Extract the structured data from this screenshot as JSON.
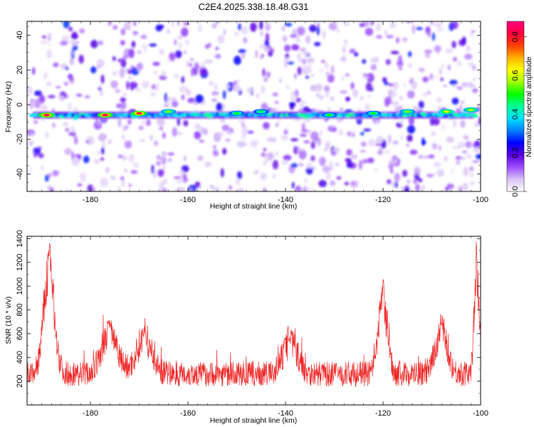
{
  "title": "C2E4.2025.338.18.48.G31",
  "chart_data": [
    {
      "type": "heatmap",
      "title": "C2E4.2025.338.18.48.G31",
      "xlabel": "Height of straight line (km)",
      "ylabel": "Frequency (Hz)",
      "xlim": [
        -193,
        -100
      ],
      "ylim": [
        -50,
        48
      ],
      "xticks": [
        -180,
        -160,
        -140,
        -120,
        -100
      ],
      "yticks": [
        -40,
        -20,
        0,
        20,
        40
      ],
      "signal_band": {
        "frequency_hz": -6,
        "x_from": -192,
        "x_to": -101
      },
      "noise_columns_km": [
        -190,
        -184,
        -178,
        -172,
        -166,
        -161,
        -158,
        -153,
        -149,
        -144,
        -139,
        -136,
        -132,
        -127,
        -123,
        -118,
        -114,
        -110,
        -106,
        -102
      ],
      "hot_spots": [
        {
          "x": -189,
          "f": -6,
          "amp": 0.85
        },
        {
          "x": -177,
          "f": -6,
          "amp": 0.85
        },
        {
          "x": -170,
          "f": -5,
          "amp": 0.82
        },
        {
          "x": -164,
          "f": -4,
          "amp": 0.55
        },
        {
          "x": -150,
          "f": -5,
          "amp": 0.5
        },
        {
          "x": -145,
          "f": -4,
          "amp": 0.48
        },
        {
          "x": -131,
          "f": -6,
          "amp": 0.5
        },
        {
          "x": -122,
          "f": -5,
          "amp": 0.5
        },
        {
          "x": -115,
          "f": -4,
          "amp": 0.55
        },
        {
          "x": -107,
          "f": -4,
          "amp": 0.62
        },
        {
          "x": -102,
          "f": -3,
          "amp": 0.58
        }
      ],
      "colorbar": {
        "label": "Normalized spectral amplitude",
        "range": [
          0,
          0.88
        ],
        "ticks": [
          "0.0",
          "0.2",
          "0.4",
          "0.6",
          "0.8"
        ],
        "colors": [
          "#ffffff",
          "#d9c2f5",
          "#9b4dff",
          "#5a00e0",
          "#0000ff",
          "#0080ff",
          "#00e0ff",
          "#00ff9a",
          "#00ff00",
          "#a0ff00",
          "#ffff00",
          "#ffb000",
          "#ff4000",
          "#ff0040",
          "#ff0080"
        ]
      }
    },
    {
      "type": "line",
      "xlabel": "Height of straight line (km)",
      "ylabel": "SNR (10 * v/v)",
      "xlim": [
        -193,
        -100
      ],
      "ylim": [
        0,
        1420
      ],
      "xticks": [
        -180,
        -160,
        -140,
        -120,
        -100
      ],
      "yticks": [
        200,
        400,
        600,
        800,
        1000,
        1200,
        1400
      ],
      "color": "#ee2222",
      "baseline": 250,
      "noise_amp": 120,
      "peaks": [
        {
          "x": -188.5,
          "y": 1360,
          "w": 1.1
        },
        {
          "x": -176,
          "y": 720,
          "w": 1.6
        },
        {
          "x": -169,
          "y": 640,
          "w": 1.6
        },
        {
          "x": -139,
          "y": 600,
          "w": 1.5
        },
        {
          "x": -120,
          "y": 1060,
          "w": 0.9
        },
        {
          "x": -108,
          "y": 740,
          "w": 1.2
        },
        {
          "x": -100.8,
          "y": 1400,
          "w": 0.5
        }
      ]
    }
  ]
}
